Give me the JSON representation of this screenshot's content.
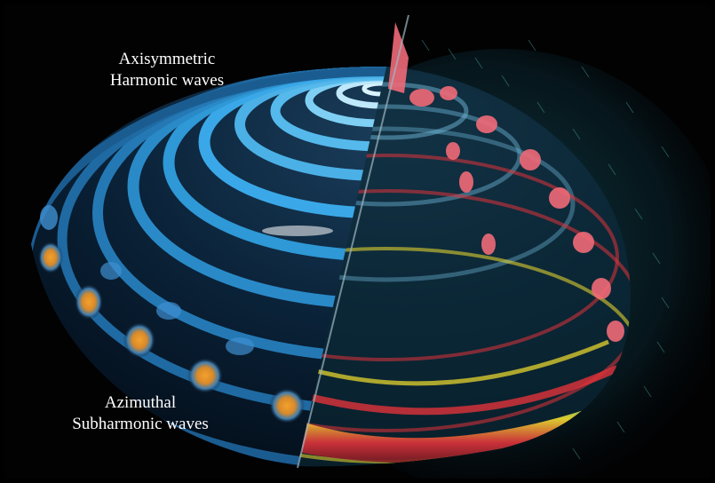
{
  "figure": {
    "subject": "Faraday-type wave patterns on a vibrated drop (dome)",
    "background_color": "#020203",
    "colors": {
      "wave_blue": "#3aa8e8",
      "wave_pale": "#cfeefc",
      "hotspot_orange": "#e2962a",
      "rim_red": "#e0333a",
      "rim_yellow": "#f2df2e",
      "jet_pink": "#f06a78",
      "field_teal": "#2fb3b8"
    }
  },
  "labels": {
    "top_line1": "Axisymmetric",
    "top_line2": "Harmonic waves",
    "bottom_line1": "Azimuthal",
    "bottom_line2": "Subharmonic waves"
  }
}
